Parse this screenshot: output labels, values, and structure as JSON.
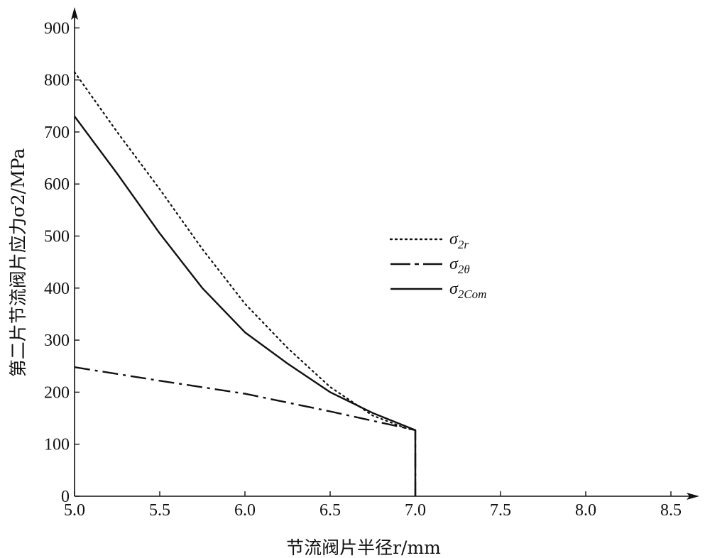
{
  "chart_data": {
    "type": "line",
    "xlabel": "节流阀片半径r/mm",
    "ylabel": "第二片节流阀片应力σ2/MPa",
    "xlim": [
      5.0,
      8.7
    ],
    "ylim": [
      0,
      950
    ],
    "x_ticks": [
      5.0,
      5.5,
      6.0,
      6.5,
      7.0,
      7.5,
      8.0,
      8.5
    ],
    "x_tick_labels": [
      "5.0",
      "5.5",
      "6.0",
      "6.5",
      "7.0",
      "7.5",
      "8.0",
      "8.5"
    ],
    "y_ticks": [
      0,
      100,
      200,
      300,
      400,
      500,
      600,
      700,
      800,
      900
    ],
    "y_tick_labels": [
      "0",
      "100",
      "200",
      "300",
      "400",
      "500",
      "600",
      "700",
      "800",
      "900"
    ],
    "grid": false,
    "legend_position": "center-right",
    "series": [
      {
        "name": "σ2r",
        "legend_main": "σ",
        "legend_sub": "2r",
        "style": "dotted",
        "color": "#111111",
        "x": [
          5.0,
          5.25,
          5.5,
          5.75,
          6.0,
          6.25,
          6.5,
          6.75,
          6.95,
          7.0,
          7.0
        ],
        "y": [
          815,
          700,
          590,
          475,
          370,
          285,
          210,
          155,
          130,
          127,
          0
        ]
      },
      {
        "name": "σ2θ",
        "legend_main": "σ",
        "legend_sub": "2θ",
        "style": "dashdot",
        "color": "#111111",
        "x": [
          5.0,
          5.5,
          6.0,
          6.5,
          7.0,
          7.0
        ],
        "y": [
          248,
          222,
          197,
          163,
          127,
          0
        ]
      },
      {
        "name": "σ2Com",
        "legend_main": "σ",
        "legend_sub": "2Com",
        "style": "solid",
        "color": "#111111",
        "x": [
          5.0,
          5.25,
          5.5,
          5.75,
          6.0,
          6.25,
          6.5,
          6.75,
          7.0,
          7.0
        ],
        "y": [
          730,
          620,
          505,
          400,
          315,
          255,
          200,
          160,
          127,
          0
        ]
      }
    ]
  }
}
